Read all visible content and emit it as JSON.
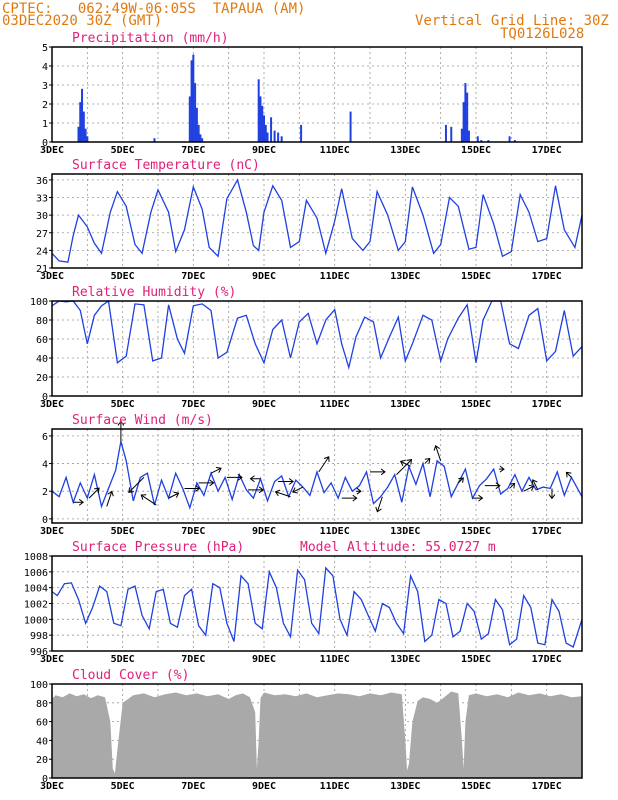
{
  "header": {
    "line1": "CPTEC:   062:49W-06:05S  TAPAUA (AM)",
    "line2": "03DEC2020 30Z (GMT)",
    "grid_note": "Vertical Grid Line: 30Z",
    "code": "TQ0126L028"
  },
  "colors": {
    "header": "#e07a10",
    "title": "#e0207a",
    "series": "#2040e0",
    "cloud": "#a9a9a9",
    "grid": "#999999"
  },
  "chart_data": [
    {
      "type": "bar",
      "title": "Precipitation (mm/h)",
      "x_range": [
        3,
        18
      ],
      "x_ticks": [
        "3DEC",
        "5DEC",
        "7DEC",
        "9DEC",
        "11DEC",
        "13DEC",
        "15DEC",
        "17DEC"
      ],
      "ylim": [
        0,
        5
      ],
      "y_ticks": [
        "0",
        "1",
        "2",
        "3",
        "4",
        "5"
      ],
      "x": [
        3.75,
        3.8,
        3.85,
        3.9,
        3.95,
        4.0,
        5.9,
        6.9,
        6.95,
        7.0,
        7.05,
        7.1,
        7.15,
        7.2,
        7.25,
        8.85,
        8.9,
        8.95,
        9.0,
        9.05,
        9.1,
        9.2,
        9.3,
        9.4,
        9.5,
        10.05,
        11.45,
        14.15,
        14.3,
        14.6,
        14.65,
        14.7,
        14.75,
        14.8,
        15.05,
        15.15,
        15.35,
        15.95,
        16.1
      ],
      "values": [
        0.8,
        2.1,
        2.8,
        1.6,
        0.7,
        0.3,
        0.2,
        2.4,
        4.3,
        4.6,
        3.1,
        1.8,
        0.9,
        0.4,
        0.2,
        3.3,
        2.4,
        1.9,
        1.4,
        0.9,
        0.5,
        1.3,
        0.6,
        0.5,
        0.3,
        0.9,
        1.6,
        0.9,
        0.8,
        0.7,
        2.1,
        3.1,
        2.6,
        0.6,
        0.3,
        0.1,
        0.1,
        0.3,
        0.1
      ]
    },
    {
      "type": "line",
      "title": "Surface Temperature (nC)",
      "x_range": [
        3,
        18
      ],
      "x_ticks": [
        "3DEC",
        "5DEC",
        "7DEC",
        "9DEC",
        "11DEC",
        "13DEC",
        "15DEC",
        "17DEC"
      ],
      "ylim": [
        21,
        37
      ],
      "y_ticks": [
        "21",
        "24",
        "27",
        "30",
        "33",
        "36"
      ],
      "x": [
        3.0,
        3.2,
        3.45,
        3.6,
        3.75,
        4.0,
        4.2,
        4.4,
        4.65,
        4.85,
        5.1,
        5.35,
        5.55,
        5.8,
        6.0,
        6.3,
        6.5,
        6.75,
        7.0,
        7.25,
        7.45,
        7.7,
        7.95,
        8.25,
        8.5,
        8.7,
        8.85,
        9.0,
        9.25,
        9.5,
        9.75,
        10.0,
        10.2,
        10.5,
        10.75,
        11.0,
        11.2,
        11.5,
        11.8,
        12.0,
        12.2,
        12.5,
        12.8,
        13.0,
        13.2,
        13.5,
        13.8,
        14.0,
        14.25,
        14.5,
        14.8,
        15.0,
        15.2,
        15.5,
        15.75,
        16.0,
        16.25,
        16.5,
        16.75,
        17.0,
        17.25,
        17.5,
        17.8,
        18.0
      ],
      "values": [
        23.5,
        22.2,
        22.0,
        26.5,
        30.0,
        28.0,
        25.2,
        23.5,
        30.5,
        34.0,
        31.5,
        25.0,
        23.5,
        30.5,
        34.3,
        30.5,
        23.8,
        27.5,
        34.8,
        31.0,
        24.5,
        23.0,
        32.8,
        36.0,
        30.5,
        24.8,
        24.0,
        30.5,
        35.0,
        32.5,
        24.5,
        25.5,
        32.5,
        29.5,
        23.5,
        29.0,
        34.5,
        26.0,
        24.0,
        25.5,
        34.0,
        30.0,
        24.0,
        25.5,
        34.8,
        30.0,
        23.5,
        25.0,
        33.0,
        31.5,
        24.2,
        24.5,
        33.5,
        28.5,
        23.0,
        23.8,
        33.5,
        30.5,
        25.5,
        26.0,
        35.0,
        27.5,
        24.5,
        30.0
      ]
    },
    {
      "type": "line",
      "title": "Relative Humidity (%)",
      "x_range": [
        3,
        18
      ],
      "x_ticks": [
        "3DEC",
        "5DEC",
        "7DEC",
        "9DEC",
        "11DEC",
        "13DEC",
        "15DEC",
        "17DEC"
      ],
      "ylim": [
        0,
        100
      ],
      "y_ticks": [
        "0",
        "20",
        "40",
        "60",
        "80",
        "100"
      ],
      "x": [
        3.0,
        3.2,
        3.4,
        3.6,
        3.8,
        4.0,
        4.2,
        4.4,
        4.6,
        4.85,
        5.1,
        5.35,
        5.6,
        5.85,
        6.1,
        6.3,
        6.55,
        6.75,
        7.0,
        7.25,
        7.5,
        7.7,
        7.95,
        8.25,
        8.5,
        8.75,
        9.0,
        9.25,
        9.5,
        9.75,
        10.0,
        10.25,
        10.5,
        10.75,
        11.0,
        11.2,
        11.4,
        11.6,
        11.85,
        12.1,
        12.3,
        12.55,
        12.8,
        13.0,
        13.2,
        13.5,
        13.75,
        14.0,
        14.2,
        14.5,
        14.75,
        15.0,
        15.2,
        15.45,
        15.7,
        15.95,
        16.2,
        16.5,
        16.75,
        17.0,
        17.25,
        17.5,
        17.75,
        18.0
      ],
      "values": [
        95,
        100,
        99,
        100,
        90,
        55,
        85,
        95,
        100,
        35,
        42,
        97,
        96,
        37,
        40,
        96,
        60,
        45,
        95,
        97,
        90,
        40,
        46,
        82,
        85,
        55,
        35,
        70,
        80,
        40,
        78,
        87,
        55,
        80,
        91,
        55,
        30,
        62,
        83,
        78,
        40,
        62,
        83,
        37,
        55,
        85,
        80,
        37,
        60,
        82,
        96,
        35,
        80,
        100,
        100,
        55,
        50,
        85,
        92,
        37,
        47,
        90,
        42,
        52
      ]
    },
    {
      "type": "line",
      "title": "Surface Wind (m/s)",
      "x_range": [
        3,
        18
      ],
      "x_ticks": [
        "3DEC",
        "5DEC",
        "7DEC",
        "9DEC",
        "11DEC",
        "13DEC",
        "15DEC",
        "17DEC"
      ],
      "ylim": [
        -0.3,
        6.5
      ],
      "y_ticks": [
        "0",
        "2",
        "4",
        "6"
      ],
      "x": [
        3.0,
        3.2,
        3.4,
        3.6,
        3.8,
        4.0,
        4.2,
        4.4,
        4.6,
        4.8,
        4.95,
        5.1,
        5.3,
        5.5,
        5.7,
        5.9,
        6.1,
        6.3,
        6.5,
        6.7,
        6.9,
        7.1,
        7.3,
        7.5,
        7.7,
        7.9,
        8.1,
        8.3,
        8.5,
        8.7,
        8.9,
        9.1,
        9.3,
        9.5,
        9.7,
        9.9,
        10.1,
        10.3,
        10.5,
        10.7,
        10.9,
        11.1,
        11.3,
        11.5,
        11.7,
        11.9,
        12.1,
        12.3,
        12.5,
        12.7,
        12.9,
        13.1,
        13.3,
        13.5,
        13.7,
        13.9,
        14.1,
        14.3,
        14.5,
        14.7,
        14.9,
        15.1,
        15.3,
        15.5,
        15.7,
        15.9,
        16.1,
        16.3,
        16.5,
        16.7,
        16.9,
        17.1,
        17.3,
        17.5,
        17.7,
        18.0
      ],
      "values": [
        2.0,
        1.6,
        3.0,
        1.2,
        2.6,
        1.5,
        3.2,
        0.9,
        2.2,
        3.5,
        5.6,
        4.2,
        1.3,
        3.0,
        3.3,
        1.0,
        2.8,
        1.5,
        3.3,
        2.2,
        0.8,
        2.6,
        1.7,
        3.3,
        2.0,
        3.0,
        1.4,
        3.2,
        2.1,
        1.5,
        2.9,
        1.3,
        2.7,
        3.1,
        1.6,
        2.8,
        2.3,
        1.7,
        3.4,
        1.9,
        2.6,
        1.5,
        3.0,
        2.0,
        2.4,
        3.4,
        1.1,
        1.6,
        2.3,
        3.2,
        1.2,
        3.8,
        2.5,
        4.0,
        1.6,
        4.2,
        3.8,
        1.6,
        2.6,
        3.6,
        1.5,
        2.4,
        2.9,
        3.6,
        1.8,
        2.2,
        3.2,
        2.0,
        3.0,
        2.1,
        2.3,
        2.2,
        3.4,
        1.7,
        3.0,
        1.6
      ],
      "arrows": [
        {
          "x": 3.6,
          "u": 2,
          "v": 0
        },
        {
          "x": 4.05,
          "u": 2,
          "v": 2
        },
        {
          "x": 4.55,
          "u": 1,
          "v": 3
        },
        {
          "x": 4.95,
          "u": 0,
          "v": 4
        },
        {
          "x": 5.6,
          "u": -3,
          "v": -3
        },
        {
          "x": 5.95,
          "u": -3,
          "v": 2
        },
        {
          "x": 6.3,
          "u": 2,
          "v": 1
        },
        {
          "x": 6.75,
          "u": 3,
          "v": 0
        },
        {
          "x": 7.15,
          "u": 3,
          "v": 0
        },
        {
          "x": 7.5,
          "u": 2,
          "v": 1
        },
        {
          "x": 7.95,
          "u": 3,
          "v": 0
        },
        {
          "x": 8.55,
          "u": 3,
          "v": 0
        },
        {
          "x": 8.9,
          "u": -2,
          "v": 0
        },
        {
          "x": 9.4,
          "u": 3,
          "v": 0
        },
        {
          "x": 9.75,
          "u": -3,
          "v": 1
        },
        {
          "x": 10.1,
          "u": -2,
          "v": -1
        },
        {
          "x": 10.55,
          "u": 2,
          "v": 3
        },
        {
          "x": 11.2,
          "u": 3,
          "v": 0
        },
        {
          "x": 11.6,
          "u": 1,
          "v": 0
        },
        {
          "x": 12.0,
          "u": 3,
          "v": 0
        },
        {
          "x": 12.35,
          "u": -1,
          "v": -3
        },
        {
          "x": 12.75,
          "u": 3,
          "v": 3
        },
        {
          "x": 13.15,
          "u": -2,
          "v": 1
        },
        {
          "x": 13.55,
          "u": 1,
          "v": 1
        },
        {
          "x": 14.0,
          "u": -1,
          "v": 3
        },
        {
          "x": 14.5,
          "u": 1,
          "v": 1
        },
        {
          "x": 14.9,
          "u": 2,
          "v": 0
        },
        {
          "x": 15.25,
          "u": 3,
          "v": 0
        },
        {
          "x": 15.65,
          "u": 1,
          "v": 0
        },
        {
          "x": 15.95,
          "u": 1,
          "v": 1
        },
        {
          "x": 16.35,
          "u": 2,
          "v": 1
        },
        {
          "x": 16.75,
          "u": -1,
          "v": 2
        },
        {
          "x": 17.15,
          "u": 0,
          "v": -2
        },
        {
          "x": 17.7,
          "u": -1,
          "v": 1
        }
      ]
    },
    {
      "type": "line",
      "title": "Surface Pressure (hPa)",
      "annotation": "Model Altitude: 55.0727 m",
      "x_range": [
        3,
        18
      ],
      "x_ticks": [
        "3DEC",
        "5DEC",
        "7DEC",
        "9DEC",
        "11DEC",
        "13DEC",
        "15DEC",
        "17DEC"
      ],
      "ylim": [
        996,
        1008
      ],
      "y_ticks": [
        "996",
        "998",
        "1000",
        "1002",
        "1004",
        "1006",
        "1008"
      ],
      "x": [
        3.0,
        3.15,
        3.35,
        3.55,
        3.75,
        3.95,
        4.15,
        4.35,
        4.55,
        4.75,
        4.95,
        5.15,
        5.35,
        5.55,
        5.75,
        5.95,
        6.15,
        6.35,
        6.55,
        6.75,
        6.95,
        7.15,
        7.35,
        7.55,
        7.75,
        7.95,
        8.15,
        8.35,
        8.55,
        8.75,
        8.95,
        9.15,
        9.35,
        9.55,
        9.75,
        9.95,
        10.15,
        10.35,
        10.55,
        10.75,
        10.95,
        11.15,
        11.35,
        11.55,
        11.75,
        11.95,
        12.15,
        12.35,
        12.55,
        12.75,
        12.95,
        13.15,
        13.35,
        13.55,
        13.75,
        13.95,
        14.15,
        14.35,
        14.55,
        14.75,
        14.95,
        15.15,
        15.35,
        15.55,
        15.75,
        15.95,
        16.15,
        16.35,
        16.55,
        16.75,
        16.95,
        17.15,
        17.35,
        17.55,
        17.75,
        18.0
      ],
      "values": [
        1003.5,
        1003.0,
        1004.5,
        1004.6,
        1002.5,
        999.5,
        1001.5,
        1004.2,
        1003.5,
        999.5,
        999.2,
        1003.8,
        1004.2,
        1000.5,
        998.8,
        1003.5,
        1003.8,
        999.5,
        999.0,
        1003.0,
        1003.8,
        999.2,
        998.0,
        1004.5,
        1004.0,
        999.5,
        997.2,
        1005.5,
        1004.5,
        999.5,
        998.8,
        1006.0,
        1004.0,
        999.5,
        997.8,
        1006.2,
        1005.0,
        999.5,
        998.2,
        1006.5,
        1005.5,
        1000.0,
        998.0,
        1003.5,
        1002.5,
        1000.5,
        998.5,
        1002.0,
        1001.5,
        999.5,
        998.2,
        1005.5,
        1003.5,
        997.2,
        998.0,
        1002.5,
        1002.0,
        997.8,
        998.5,
        1002.0,
        1001.0,
        997.5,
        998.2,
        1002.5,
        1001.2,
        996.8,
        997.5,
        1003.0,
        1001.5,
        997.0,
        996.8,
        1002.5,
        1001.0,
        997.0,
        996.5,
        1000.0
      ]
    },
    {
      "type": "area",
      "title": "Cloud Cover (%)",
      "x_range": [
        3,
        18
      ],
      "x_ticks": [
        "3DEC",
        "5DEC",
        "7DEC",
        "9DEC",
        "11DEC",
        "13DEC",
        "15DEC",
        "17DEC"
      ],
      "ylim": [
        0,
        100
      ],
      "y_ticks": [
        "0",
        "20",
        "40",
        "60",
        "80",
        "100"
      ],
      "x": [
        3.0,
        3.1,
        3.3,
        3.5,
        3.7,
        3.9,
        4.1,
        4.3,
        4.5,
        4.65,
        4.72,
        4.78,
        4.85,
        5.0,
        5.3,
        5.6,
        5.9,
        6.2,
        6.5,
        6.8,
        7.1,
        7.4,
        7.7,
        8.0,
        8.2,
        8.4,
        8.6,
        8.75,
        8.8,
        8.85,
        8.9,
        9.0,
        9.3,
        9.6,
        9.9,
        10.2,
        10.5,
        10.8,
        11.1,
        11.4,
        11.7,
        12.0,
        12.3,
        12.6,
        12.9,
        13.0,
        13.05,
        13.1,
        13.2,
        13.35,
        13.5,
        13.7,
        13.9,
        14.1,
        14.3,
        14.5,
        14.6,
        14.65,
        14.7,
        14.8,
        15.0,
        15.3,
        15.6,
        15.9,
        16.2,
        16.5,
        16.8,
        17.1,
        17.4,
        17.7,
        18.0
      ],
      "values": [
        84,
        88,
        86,
        90,
        87,
        89,
        85,
        88,
        86,
        60,
        10,
        5,
        30,
        80,
        88,
        90,
        86,
        89,
        91,
        88,
        90,
        87,
        89,
        84,
        88,
        90,
        86,
        70,
        10,
        40,
        85,
        91,
        88,
        89,
        87,
        90,
        86,
        88,
        90,
        89,
        87,
        90,
        88,
        91,
        89,
        40,
        8,
        15,
        60,
        82,
        86,
        84,
        80,
        86,
        92,
        90,
        40,
        10,
        60,
        88,
        90,
        87,
        89,
        86,
        91,
        88,
        90,
        87,
        89,
        86,
        87
      ]
    }
  ]
}
